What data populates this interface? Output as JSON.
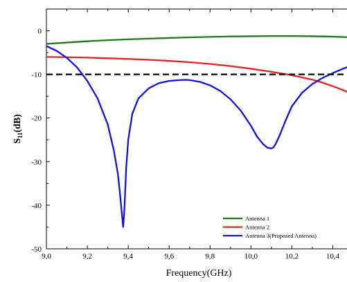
{
  "chart_data": {
    "type": "line",
    "xlabel": "Frequency(GHz)",
    "ylabel": {
      "main": "S",
      "sub": "11",
      "unit": "(dB)"
    },
    "xlim": [
      9.0,
      10.5
    ],
    "ylim": [
      -50,
      5
    ],
    "xticks": [
      9.0,
      9.2,
      9.4,
      9.6,
      9.8,
      10.0,
      10.2,
      10.4
    ],
    "xtick_labels": [
      "9,0",
      "9,2",
      "9,4",
      "9,6",
      "9,8",
      "10,0",
      "10,2",
      "10,4"
    ],
    "yticks": [
      0,
      -10,
      -20,
      -30,
      -40,
      -50
    ],
    "ytick_labels": [
      "0",
      "-10",
      "-20",
      "-30",
      "-40",
      "-50"
    ],
    "grid": false,
    "legend_position": "bottom-right",
    "reference_line": {
      "y": -10,
      "style": "dashed",
      "color": "#000000"
    },
    "series": [
      {
        "name": "Antenna 1",
        "color": "#1a7a1a",
        "x": [
          9.0,
          9.1,
          9.2,
          9.3,
          9.4,
          9.5,
          9.6,
          9.7,
          9.8,
          9.9,
          10.0,
          10.1,
          10.2,
          10.3,
          10.4,
          10.5
        ],
        "y": [
          -3.0,
          -2.7,
          -2.4,
          -2.15,
          -1.95,
          -1.8,
          -1.65,
          -1.5,
          -1.4,
          -1.3,
          -1.25,
          -1.2,
          -1.2,
          -1.25,
          -1.35,
          -1.5
        ]
      },
      {
        "name": "Antenna 2",
        "color": "#e62020",
        "x": [
          9.0,
          9.1,
          9.2,
          9.3,
          9.4,
          9.5,
          9.6,
          9.7,
          9.8,
          9.9,
          10.0,
          10.1,
          10.2,
          10.3,
          10.35,
          10.4,
          10.45,
          10.5
        ],
        "y": [
          -6.0,
          -6.05,
          -6.15,
          -6.3,
          -6.45,
          -6.65,
          -6.9,
          -7.2,
          -7.6,
          -8.1,
          -8.7,
          -9.4,
          -10.2,
          -11.2,
          -11.9,
          -12.7,
          -13.6,
          -14.6
        ]
      },
      {
        "name": "Antenna 3(Proposed Antenna)",
        "color": "#1010e0",
        "x": [
          9.0,
          9.05,
          9.1,
          9.15,
          9.2,
          9.25,
          9.3,
          9.33,
          9.35,
          9.36,
          9.37,
          9.375,
          9.38,
          9.385,
          9.39,
          9.4,
          9.42,
          9.45,
          9.5,
          9.55,
          9.6,
          9.65,
          9.68,
          9.7,
          9.75,
          9.8,
          9.85,
          9.9,
          9.95,
          10.0,
          10.03,
          10.06,
          10.08,
          10.1,
          10.11,
          10.12,
          10.14,
          10.17,
          10.2,
          10.25,
          10.3,
          10.35,
          10.4,
          10.45,
          10.5
        ],
        "y": [
          -3.5,
          -4.6,
          -6.2,
          -8.4,
          -11.5,
          -15.5,
          -21.5,
          -27.5,
          -33.0,
          -37.5,
          -42.5,
          -45.0,
          -42.0,
          -37.0,
          -31.5,
          -25.0,
          -19.0,
          -15.5,
          -13.2,
          -12.0,
          -11.5,
          -11.3,
          -11.25,
          -11.3,
          -11.7,
          -12.5,
          -13.8,
          -15.7,
          -18.3,
          -21.8,
          -24.3,
          -26.0,
          -26.8,
          -27.0,
          -26.7,
          -26.0,
          -24.0,
          -20.5,
          -17.3,
          -14.2,
          -12.2,
          -10.8,
          -9.7,
          -8.7,
          -7.8
        ]
      }
    ]
  }
}
